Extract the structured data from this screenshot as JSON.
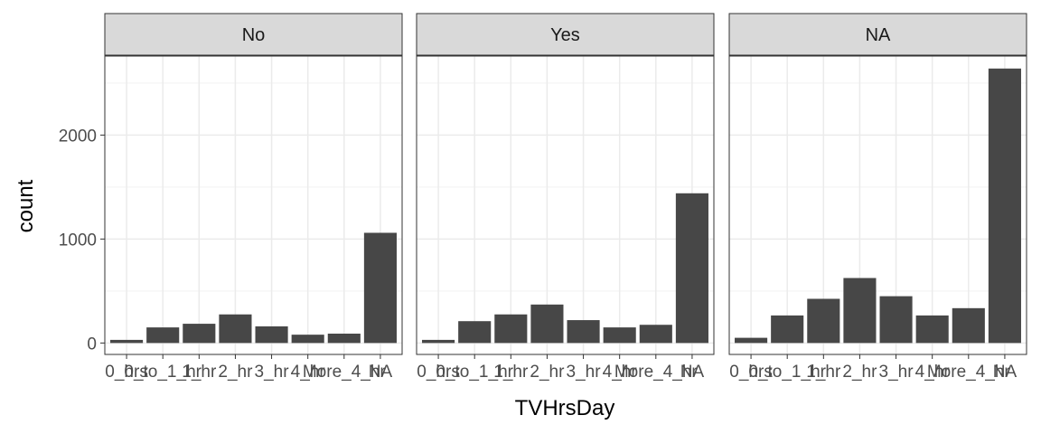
{
  "chart_data": {
    "type": "bar",
    "xlabel": "TVHrsDay",
    "ylabel": "count",
    "ylim": [
      -110,
      2760
    ],
    "yticks": [
      0,
      1000,
      2000
    ],
    "grid": true,
    "legend": "none",
    "bar_color": "#474747",
    "strip_color": "#d9d9d9",
    "categories": [
      "0_hrs",
      "0_to_1_hr",
      "1_hr",
      "2_hr",
      "3_hr",
      "4_hr",
      "More_4_hr",
      "NA"
    ],
    "panels": [
      {
        "name": "No",
        "values": [
          30,
          150,
          185,
          275,
          160,
          80,
          90,
          1060
        ]
      },
      {
        "name": "Yes",
        "values": [
          30,
          210,
          275,
          370,
          220,
          150,
          175,
          1440
        ]
      },
      {
        "name": "NA",
        "values": [
          50,
          265,
          425,
          625,
          450,
          265,
          335,
          2640
        ]
      }
    ]
  }
}
